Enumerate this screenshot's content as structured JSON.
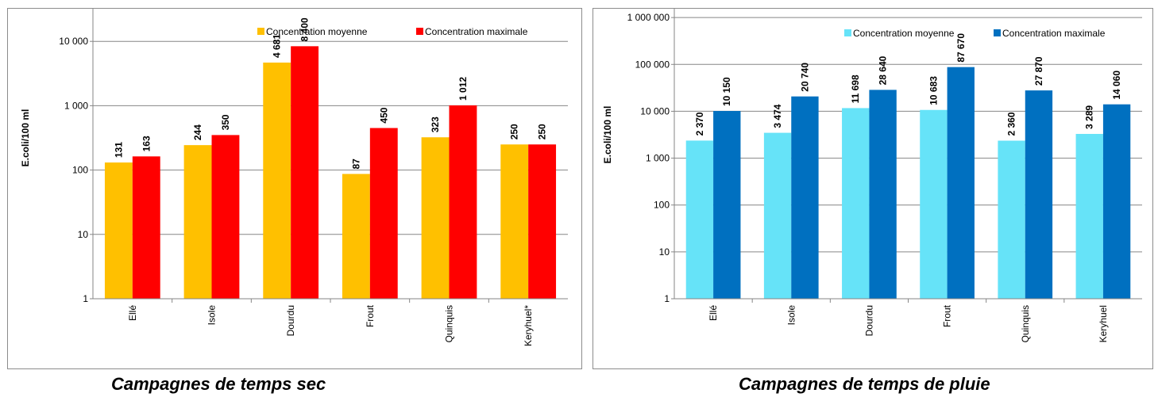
{
  "chart_data": [
    {
      "type": "bar",
      "ylabel": "E.coli/100 ml",
      "yscale": "log",
      "ylim": [
        1,
        100000
      ],
      "yticks": [
        1,
        10,
        100,
        1000,
        10000
      ],
      "ytick_labels": [
        "1",
        "10",
        "100",
        "1 000",
        "10 000"
      ],
      "categories": [
        "Ellé",
        "Isole",
        "Dourdu",
        "Frout",
        "Quinquis",
        "Keryhuel*"
      ],
      "series": [
        {
          "name": "Concentration moyenne",
          "color": "#FFC000",
          "values": [
            131,
            244,
            4681,
            87,
            323,
            250
          ],
          "labels": [
            "131",
            "244",
            "4 681",
            "87",
            "323",
            "250"
          ]
        },
        {
          "name": "Concentration maximale",
          "color": "#FF0000",
          "values": [
            163,
            350,
            8400,
            450,
            1012,
            250
          ],
          "labels": [
            "163",
            "350",
            "8 400",
            "450",
            "1 012",
            "250"
          ]
        }
      ],
      "legend": "top-right",
      "grid": true,
      "caption": "Campagnes de temps sec"
    },
    {
      "type": "bar",
      "ylabel": "E.coli/100 ml",
      "yscale": "log",
      "ylim": [
        1,
        10000000
      ],
      "yticks": [
        1,
        10,
        100,
        1000,
        10000,
        100000,
        1000000
      ],
      "ytick_labels": [
        "1",
        "10",
        "100",
        "1 000",
        "10 000",
        "100 000",
        "1 000 000"
      ],
      "categories": [
        "Ellé",
        "Isole",
        "Dourdu",
        "Frout",
        "Quinquis",
        "Keryhuel"
      ],
      "series": [
        {
          "name": "Concentration moyenne",
          "color": "#66E3F8",
          "values": [
            2370,
            3474,
            11698,
            10683,
            2360,
            3289
          ],
          "labels": [
            "2 370",
            "3 474",
            "11 698",
            "10 683",
            "2 360",
            "3 289"
          ]
        },
        {
          "name": "Concentration maximale",
          "color": "#0070C0",
          "values": [
            10150,
            20740,
            28640,
            87670,
            27870,
            14060
          ],
          "labels": [
            "10 150",
            "20 740",
            "28 640",
            "87 670",
            "27 870",
            "14 060"
          ]
        }
      ],
      "legend": "top-right",
      "grid": true,
      "caption": "Campagnes de temps de pluie"
    }
  ]
}
